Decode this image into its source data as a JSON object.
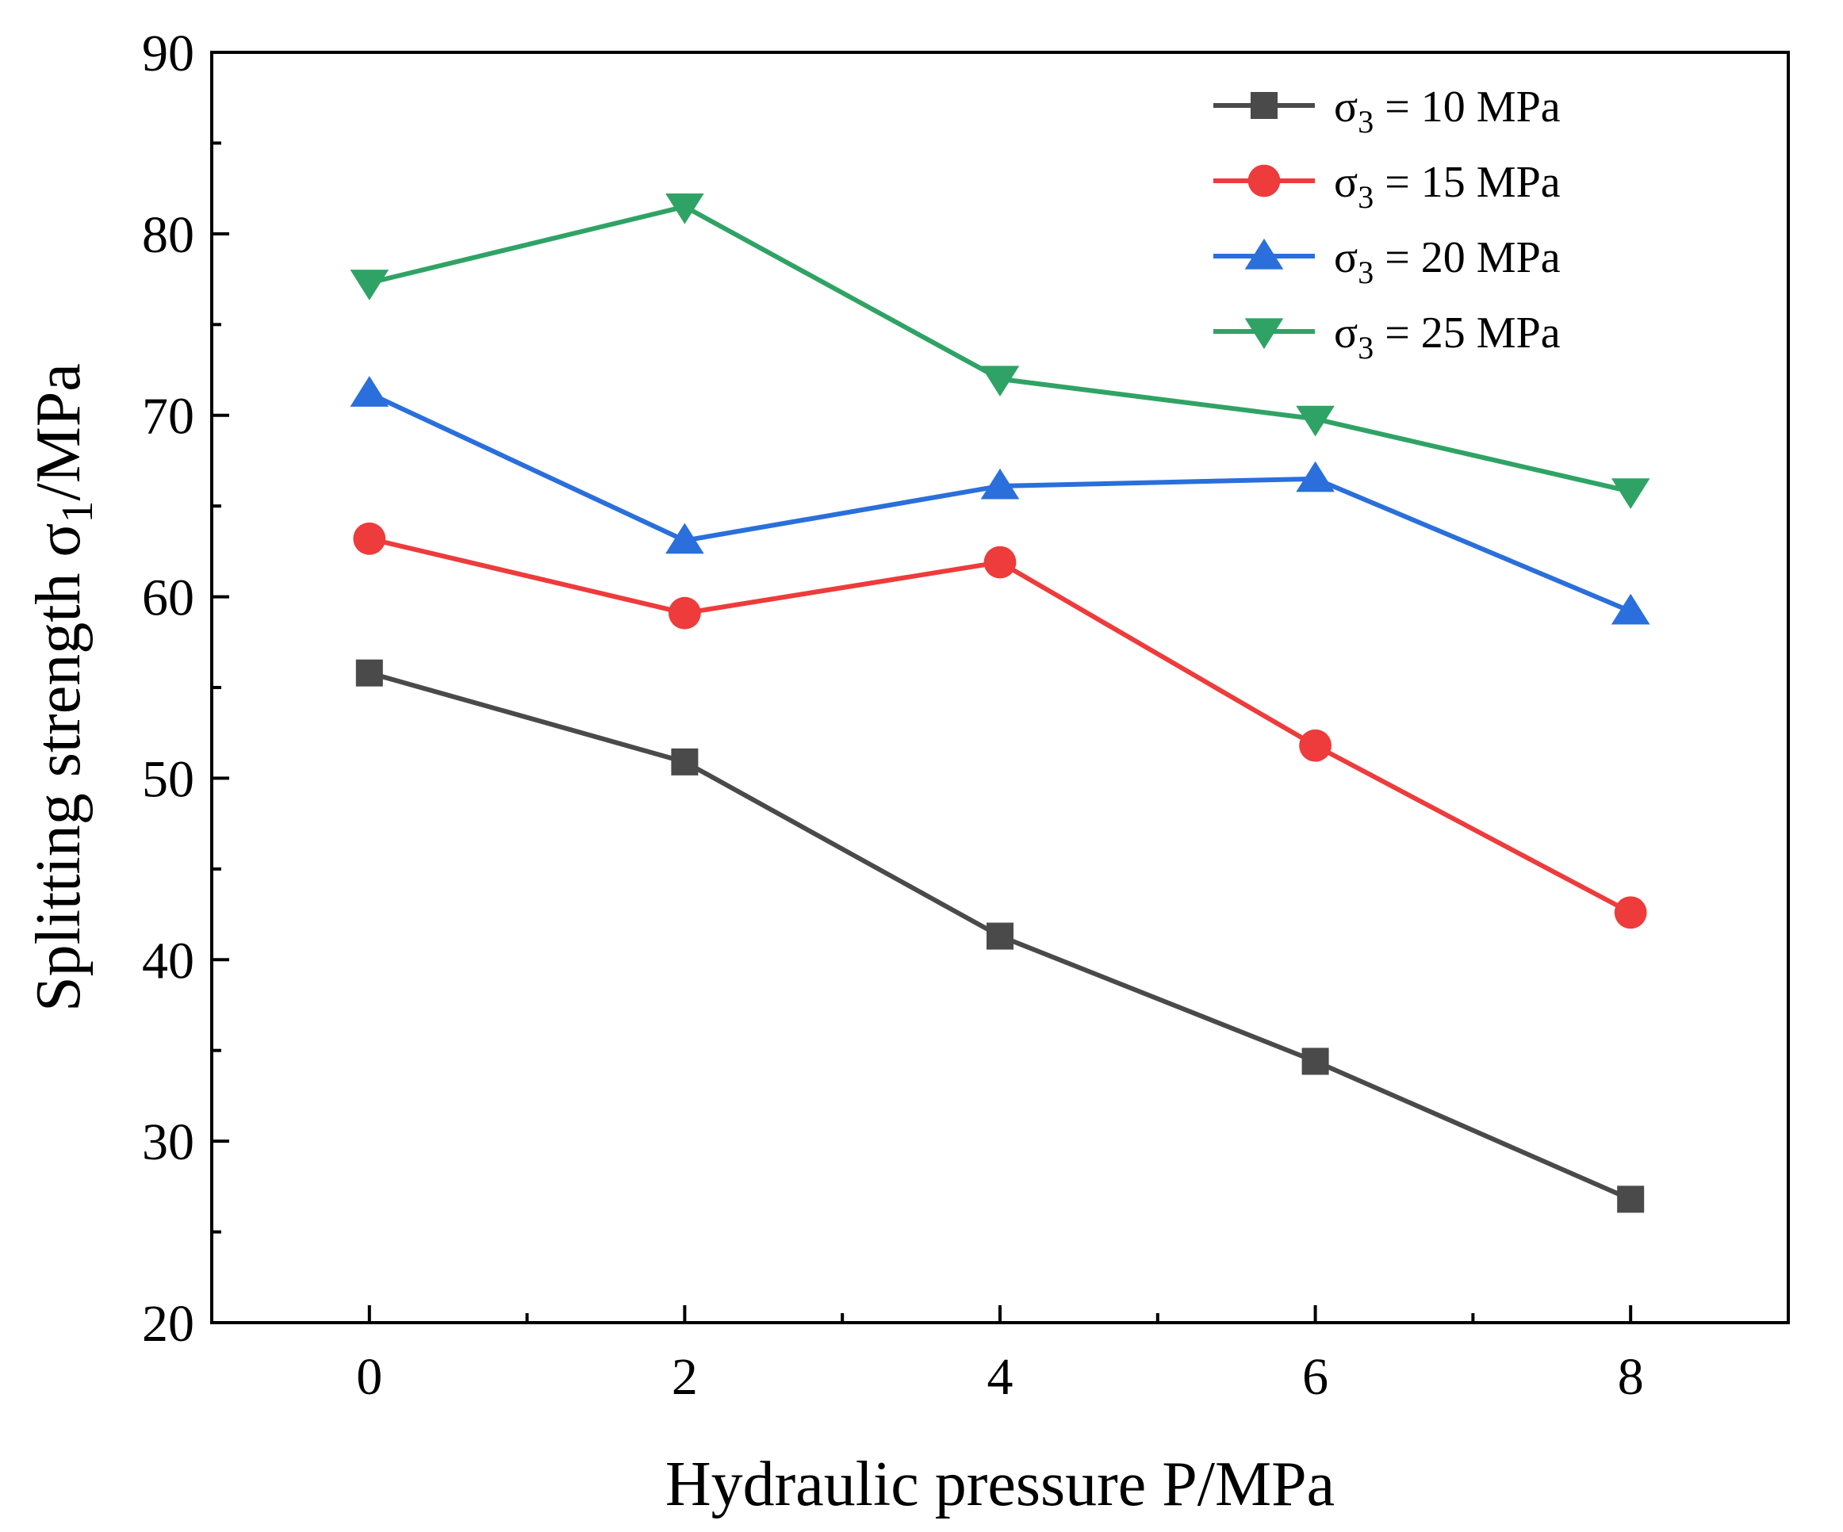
{
  "chart_data": {
    "type": "line",
    "xlabel": "Hydraulic pressure P/MPa",
    "ylabel": {
      "main": "Splitting strength σ",
      "sub": "1",
      "tail": "/MPa"
    },
    "x": [
      0,
      2,
      4,
      6,
      8
    ],
    "xlim": [
      -1,
      9
    ],
    "ylim": [
      20,
      90
    ],
    "x_ticks": [
      0,
      2,
      4,
      6,
      8
    ],
    "x_minor_ticks": [
      1,
      3,
      5,
      7
    ],
    "y_ticks": [
      20,
      30,
      40,
      50,
      60,
      70,
      80,
      90
    ],
    "y_minor_ticks": [
      25,
      35,
      45,
      55,
      65,
      75,
      85
    ],
    "grid": false,
    "legend_position": "top-right",
    "series": [
      {
        "name": "σ3 = 10 MPa",
        "label": {
          "main": "σ",
          "sub": "3",
          "tail": " = 10 MPa"
        },
        "marker": "square",
        "color": "#4a4a4a",
        "values": [
          55.8,
          50.9,
          41.3,
          34.4,
          26.8
        ]
      },
      {
        "name": "σ3 = 15 MPa",
        "label": {
          "main": "σ",
          "sub": "3",
          "tail": " = 15 MPa"
        },
        "marker": "circle",
        "color": "#ee3b3b",
        "values": [
          63.2,
          59.1,
          61.9,
          51.8,
          42.6
        ]
      },
      {
        "name": "σ3 = 20 MPa",
        "label": {
          "main": "σ",
          "sub": "3",
          "tail": " = 20 MPa"
        },
        "marker": "triangle-up",
        "color": "#2a6fdb",
        "values": [
          71.2,
          63.1,
          66.1,
          66.5,
          59.2
        ]
      },
      {
        "name": "σ3 = 25 MPa",
        "label": {
          "main": "σ",
          "sub": "3",
          "tail": " = 25 MPa"
        },
        "marker": "triangle-down",
        "color": "#2fa365",
        "values": [
          77.3,
          81.5,
          72.0,
          69.8,
          65.8
        ]
      }
    ]
  }
}
